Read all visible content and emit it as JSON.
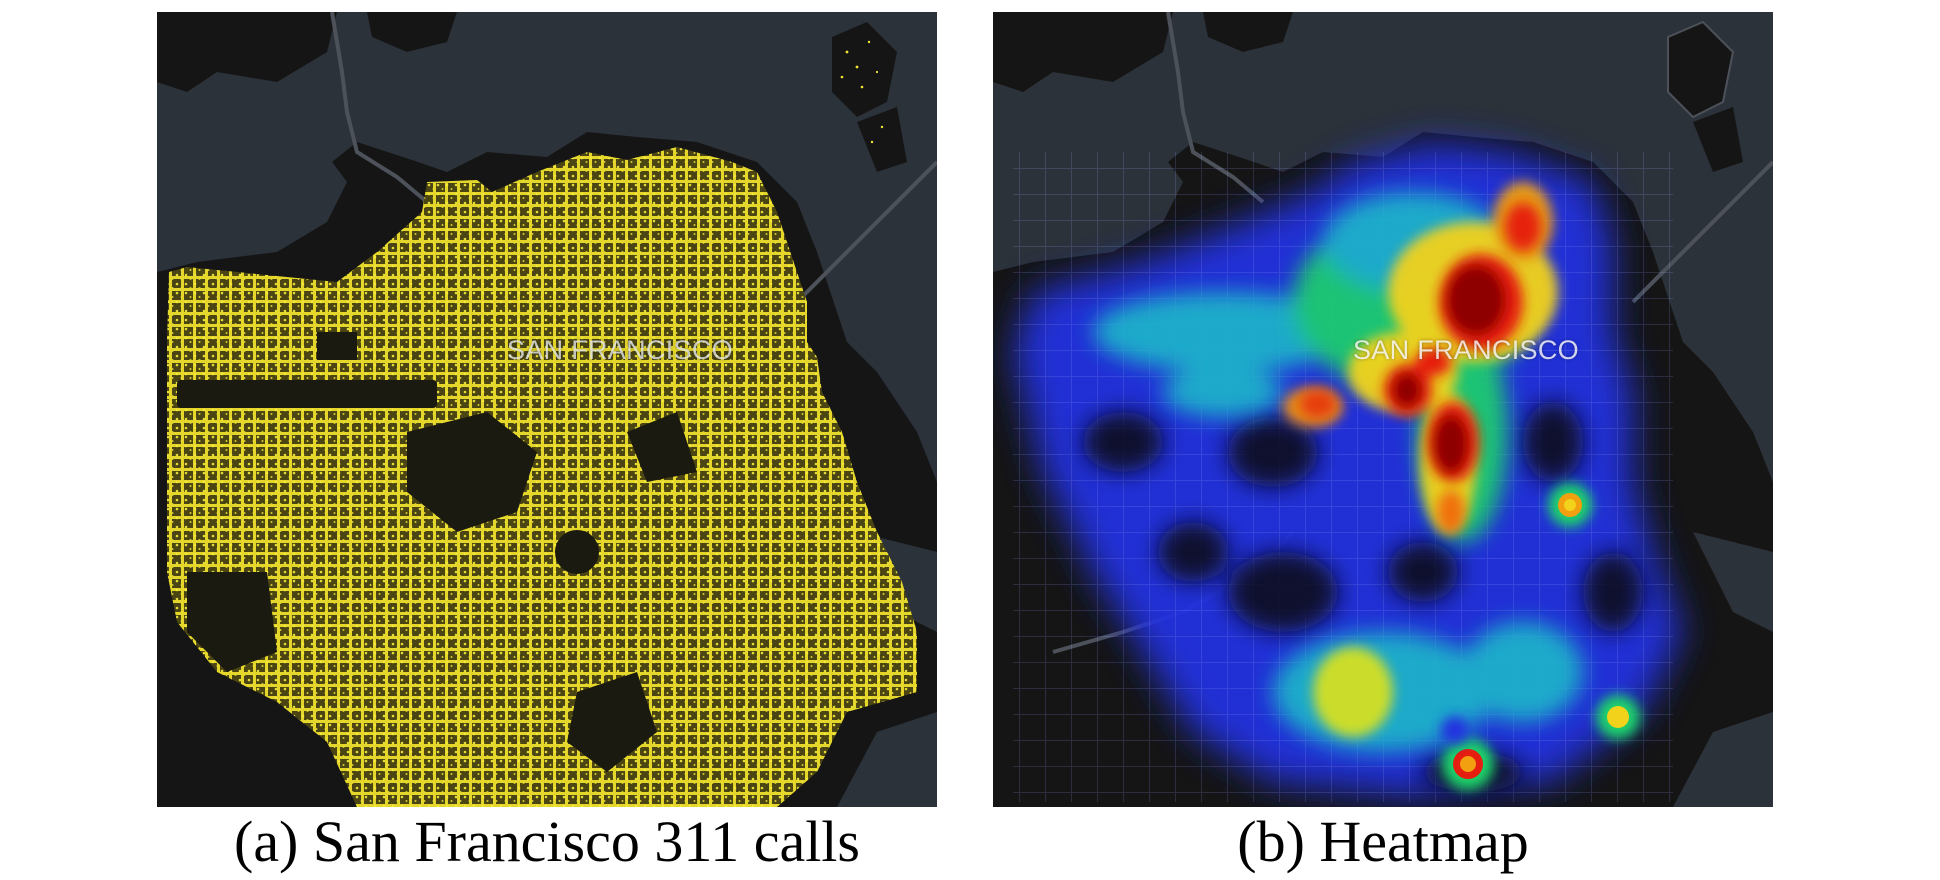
{
  "panels": [
    {
      "id": "a",
      "map_label": "SAN FRANCISCO",
      "caption": "(a) San Francisco 311 calls",
      "layer": "point-dots",
      "colors": {
        "water": "#2c323a",
        "land": "#161616",
        "road": "#4a4e55",
        "points": "#f2e632"
      }
    },
    {
      "id": "b",
      "map_label": "SAN FRANCISCO",
      "caption": "(b) Heatmap",
      "layer": "density-heatmap",
      "colors": {
        "water": "#2c323a",
        "land": "#161616",
        "road": "#4a4e55",
        "low": "#2233e0",
        "mid": "#1fd36a",
        "high": "#f2d21a",
        "peak": "#a00000"
      }
    }
  ]
}
